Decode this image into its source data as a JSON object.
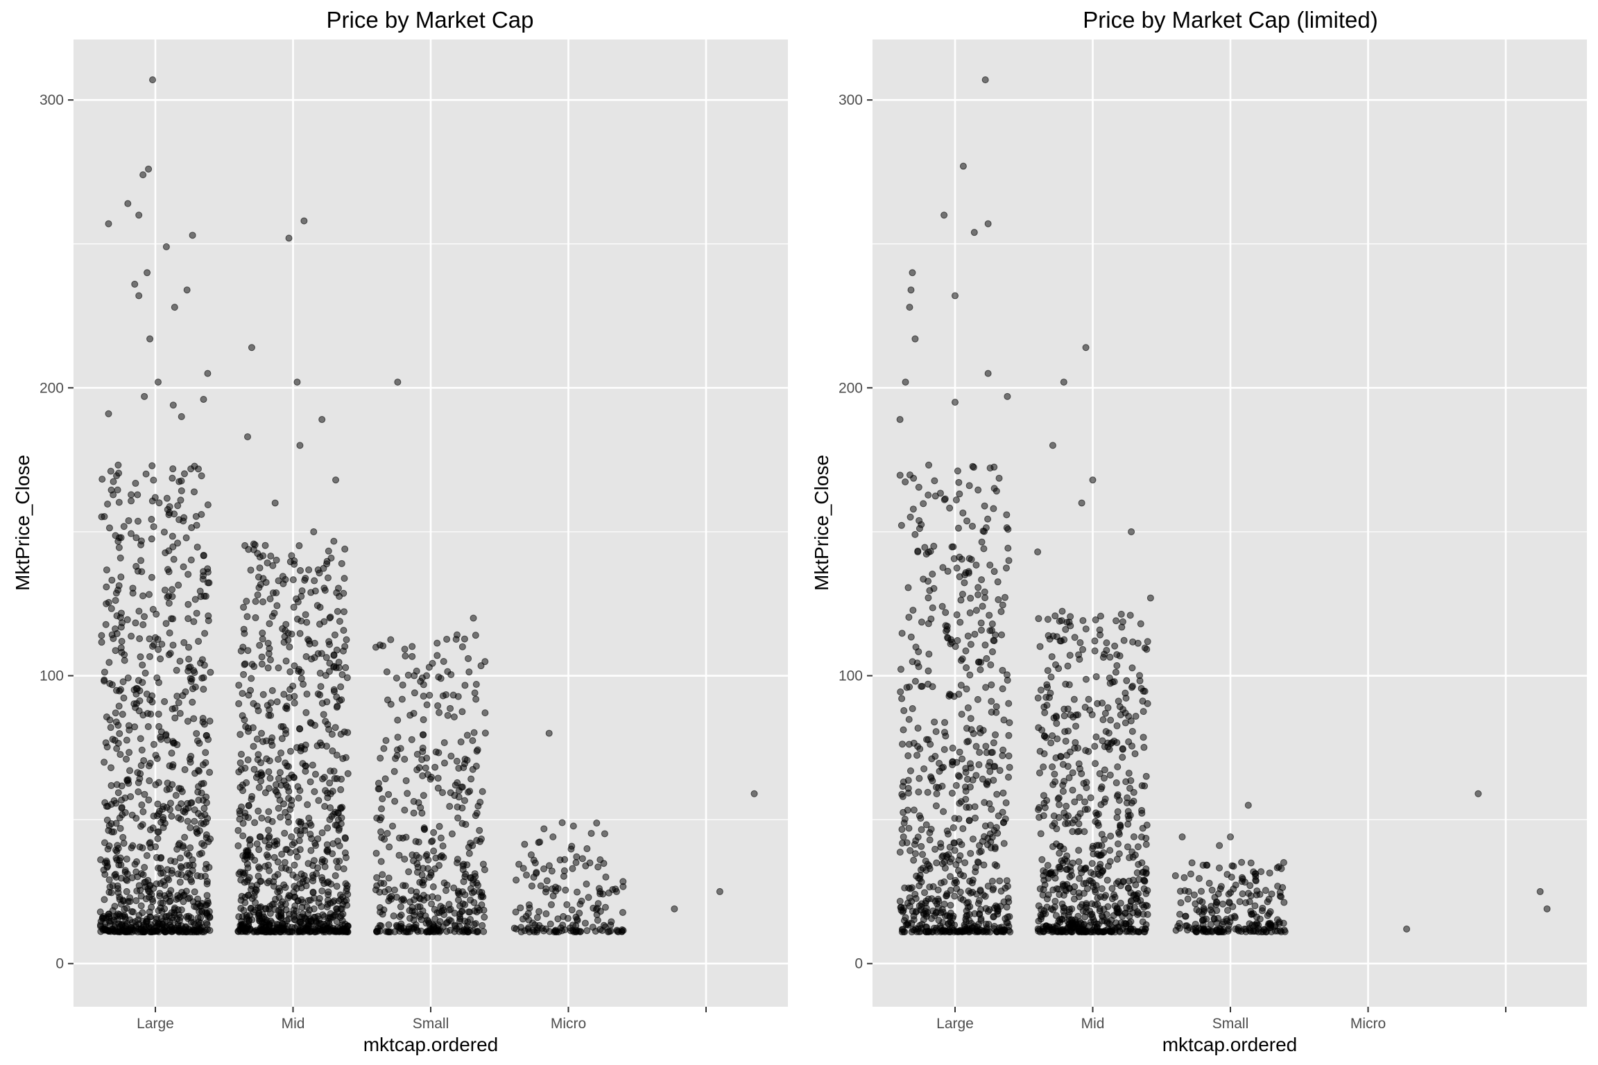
{
  "colors": {
    "panel_background": "#e5e5e5",
    "grid": "#ffffff",
    "point": "#000000",
    "tick_text": "#4d4d4d"
  },
  "chart_data": [
    {
      "type": "scatter",
      "jitter": true,
      "title": "Price by Market Cap",
      "xlabel": "mktcap.ordered",
      "ylabel": "MktPrice_Close",
      "categories": [
        "Large",
        "Mid",
        "Small",
        "Micro",
        ""
      ],
      "ylim": [
        -15,
        321
      ],
      "yticks": [
        0,
        100,
        200,
        300
      ],
      "grid": true,
      "legend": "none",
      "point_alpha": 0.5,
      "groups": [
        {
          "category": "Large",
          "n": 900,
          "min": 11,
          "max": 307,
          "highlights": [
            [
              -0.02,
              307
            ],
            [
              -0.34,
              257
            ],
            [
              -0.2,
              264
            ],
            [
              -0.12,
              260
            ],
            [
              -0.15,
              236
            ],
            [
              -0.06,
              240
            ],
            [
              -0.12,
              232
            ],
            [
              -0.09,
              274
            ],
            [
              -0.05,
              276
            ],
            [
              0.27,
              253
            ],
            [
              0.14,
              228
            ],
            [
              0.23,
              234
            ],
            [
              -0.04,
              217
            ],
            [
              0.02,
              202
            ],
            [
              0.38,
              205
            ],
            [
              0.13,
              194
            ],
            [
              -0.34,
              191
            ],
            [
              0.35,
              196
            ],
            [
              -0.08,
              197
            ],
            [
              0.19,
              190
            ],
            [
              0.08,
              249
            ]
          ]
        },
        {
          "category": "Mid",
          "n": 900,
          "min": 11,
          "max": 258,
          "highlights": [
            [
              0.08,
              258
            ],
            [
              -0.03,
              252
            ],
            [
              -0.3,
              214
            ],
            [
              0.03,
              202
            ],
            [
              -0.33,
              183
            ],
            [
              0.21,
              189
            ],
            [
              0.05,
              180
            ],
            [
              0.15,
              150
            ],
            [
              0.31,
              168
            ],
            [
              -0.13,
              160
            ]
          ]
        },
        {
          "category": "Small",
          "n": 450,
          "min": 11,
          "max": 202,
          "highlights": [
            [
              -0.24,
              202
            ],
            [
              0.31,
              120
            ],
            [
              -0.12,
              100
            ],
            [
              -0.03,
              100
            ],
            [
              0.09,
              93
            ],
            [
              0.22,
              77
            ],
            [
              0.18,
              62
            ]
          ]
        },
        {
          "category": "Micro",
          "n": 160,
          "min": 11,
          "max": 80,
          "highlights": [
            [
              -0.14,
              80
            ],
            [
              -0.06,
              36
            ],
            [
              0.03,
              33
            ],
            [
              -0.2,
              27
            ],
            [
              0.23,
              25
            ],
            [
              0.35,
              25
            ]
          ]
        },
        {
          "category": "",
          "n": 3,
          "min": 19,
          "max": 59,
          "highlights": [
            [
              -0.23,
              19
            ],
            [
              0.1,
              25
            ],
            [
              0.35,
              59
            ]
          ]
        }
      ]
    },
    {
      "type": "scatter",
      "jitter": true,
      "title": "Price by Market Cap (limited)",
      "xlabel": "mktcap.ordered",
      "ylabel": "MktPrice_Close",
      "categories": [
        "Large",
        "Mid",
        "Small",
        "Micro",
        ""
      ],
      "ylim": [
        -15,
        321
      ],
      "yticks": [
        0,
        100,
        200,
        300
      ],
      "grid": true,
      "legend": "none",
      "point_alpha": 0.5,
      "groups": [
        {
          "category": "Large",
          "n": 700,
          "min": 11,
          "max": 307,
          "highlights": [
            [
              0.22,
              307
            ],
            [
              0.06,
              277
            ],
            [
              -0.08,
              260
            ],
            [
              0.0,
              232
            ],
            [
              0.14,
              254
            ],
            [
              0.24,
              257
            ],
            [
              -0.31,
              240
            ],
            [
              -0.32,
              234
            ],
            [
              -0.33,
              228
            ],
            [
              -0.29,
              217
            ],
            [
              0.24,
              205
            ],
            [
              -0.36,
              202
            ],
            [
              0.38,
              197
            ],
            [
              -0.4,
              189
            ],
            [
              0.0,
              195
            ]
          ]
        },
        {
          "category": "Mid",
          "n": 700,
          "min": 11,
          "max": 214,
          "highlights": [
            [
              -0.05,
              214
            ],
            [
              -0.21,
              202
            ],
            [
              -0.29,
              180
            ],
            [
              0.0,
              168
            ],
            [
              -0.08,
              160
            ],
            [
              0.28,
              150
            ],
            [
              -0.4,
              143
            ],
            [
              0.42,
              127
            ]
          ]
        },
        {
          "category": "Small",
          "n": 220,
          "min": 11,
          "max": 55,
          "highlights": [
            [
              0.13,
              55
            ],
            [
              0.0,
              44
            ],
            [
              -0.35,
              44
            ],
            [
              -0.08,
              41
            ],
            [
              0.37,
              33
            ]
          ]
        },
        {
          "category": "Micro",
          "n": 1,
          "min": 12,
          "max": 12,
          "highlights": [
            [
              0.28,
              12
            ]
          ]
        },
        {
          "category": "",
          "n": 3,
          "min": 19,
          "max": 59,
          "highlights": [
            [
              -0.2,
              59
            ],
            [
              0.25,
              25
            ],
            [
              0.3,
              19
            ]
          ]
        }
      ]
    }
  ]
}
